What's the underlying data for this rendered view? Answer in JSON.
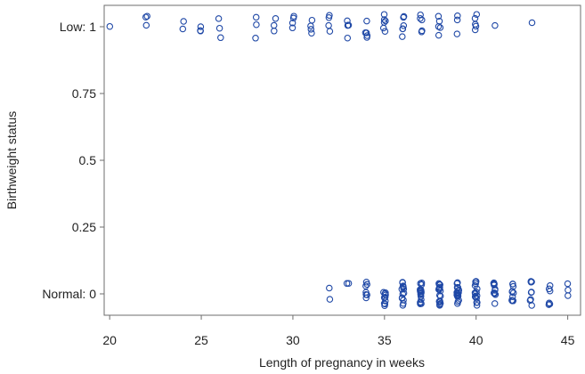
{
  "chart_data": {
    "type": "scatter",
    "title": "",
    "xlabel": "Length of pregnancy in weeks",
    "ylabel": "Birthweight status",
    "xlim": [
      19.7,
      45.7
    ],
    "ylim": [
      -0.08,
      1.08
    ],
    "x_ticks": [
      {
        "value": 20,
        "label": "20"
      },
      {
        "value": 25,
        "label": "25"
      },
      {
        "value": 30,
        "label": "30"
      },
      {
        "value": 35,
        "label": "35"
      },
      {
        "value": 40,
        "label": "40"
      },
      {
        "value": 45,
        "label": "45"
      }
    ],
    "y_ticks": [
      {
        "value": 0,
        "label": "Normal: 0"
      },
      {
        "value": 0.25,
        "label": "0.25"
      },
      {
        "value": 0.5,
        "label": "0.5"
      },
      {
        "value": 0.75,
        "label": "0.75"
      },
      {
        "value": 1,
        "label": "Low: 1"
      }
    ],
    "grid": false,
    "jitter": "vertical",
    "marker": "open-circle",
    "marker_color": "#1f48a6",
    "series": [
      {
        "status": 1,
        "x": [
          20,
          22,
          22,
          22,
          24,
          24,
          25,
          25,
          25,
          26,
          26,
          26,
          28,
          28,
          28,
          29,
          29,
          29,
          30,
          30,
          30,
          30,
          31,
          31,
          31,
          31,
          32,
          32,
          32,
          32,
          33,
          33,
          33,
          33,
          33,
          34,
          34,
          34,
          34,
          34,
          35,
          35,
          35,
          35,
          35,
          35,
          36,
          36,
          36,
          36,
          36,
          36,
          37,
          37,
          37,
          37,
          37,
          38,
          38,
          38,
          38,
          38,
          39,
          39,
          39,
          40,
          40,
          40,
          40,
          40,
          41,
          43
        ]
      },
      {
        "status": 0,
        "x": [
          32,
          32,
          33,
          33,
          34,
          34,
          34,
          34,
          34,
          34,
          34,
          35,
          35,
          35,
          35,
          35,
          35,
          35,
          35,
          35,
          35,
          36,
          36,
          36,
          36,
          36,
          36,
          36,
          36,
          36,
          36,
          36,
          36,
          36,
          36,
          37,
          37,
          37,
          37,
          37,
          37,
          37,
          37,
          37,
          37,
          37,
          37,
          37,
          37,
          37,
          37,
          37,
          37,
          38,
          38,
          38,
          38,
          38,
          38,
          38,
          38,
          38,
          38,
          38,
          38,
          38,
          38,
          38,
          38,
          38,
          38,
          39,
          39,
          39,
          39,
          39,
          39,
          39,
          39,
          39,
          39,
          39,
          39,
          39,
          39,
          39,
          39,
          39,
          39,
          40,
          40,
          40,
          40,
          40,
          40,
          40,
          40,
          40,
          40,
          40,
          40,
          40,
          40,
          40,
          40,
          40,
          40,
          41,
          41,
          41,
          41,
          41,
          41,
          41,
          41,
          41,
          41,
          41,
          41,
          41,
          41,
          42,
          42,
          42,
          42,
          42,
          42,
          42,
          42,
          42,
          42,
          43,
          43,
          43,
          43,
          43,
          43,
          43,
          43,
          44,
          44,
          44,
          44,
          44,
          44,
          45,
          45,
          45
        ]
      }
    ]
  }
}
